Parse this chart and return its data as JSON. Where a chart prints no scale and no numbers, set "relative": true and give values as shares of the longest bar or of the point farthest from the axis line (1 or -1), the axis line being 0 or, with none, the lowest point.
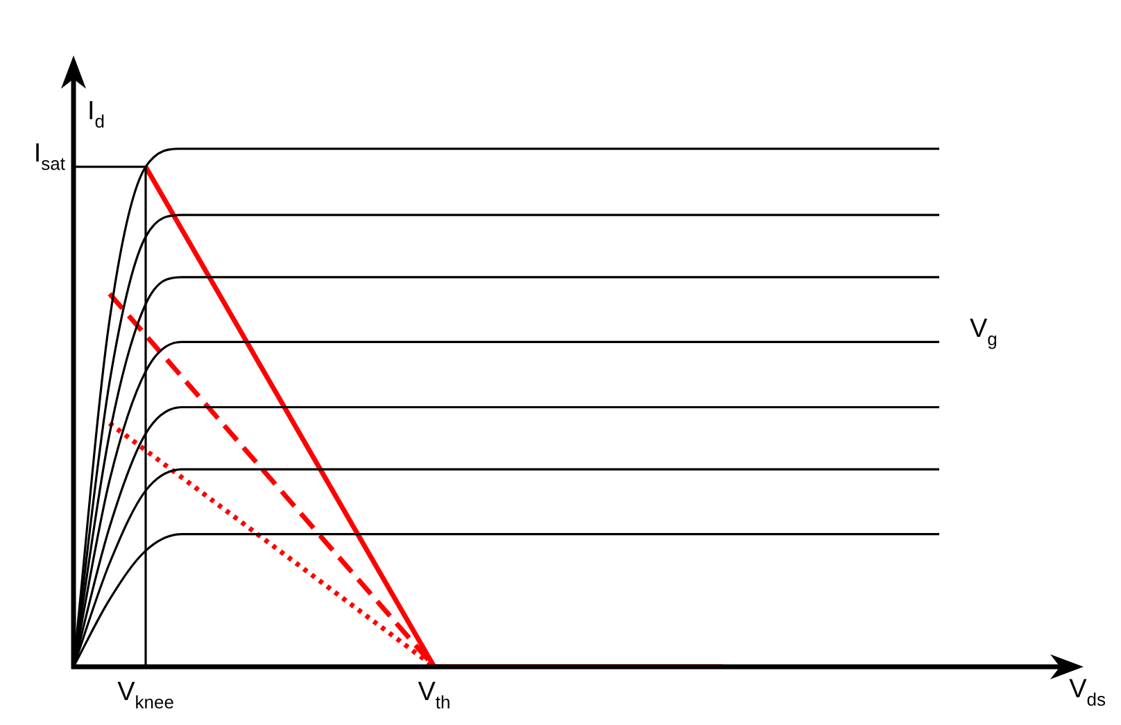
{
  "chart_data": {
    "type": "line",
    "relative": true,
    "xlabel": "V$_{ds}$",
    "ylabel": "I$_{d}$",
    "categories": [
      null,
      null,
      "V$_{knee}$",
      null,
      null,
      null,
      null,
      null,
      null,
      null,
      "V$_{th}$",
      null,
      null,
      null,
      null,
      null,
      null,
      null,
      null,
      null,
      null,
      null,
      null,
      null,
      null,
      null,
      null,
      null,
      null
    ],
    "series": [
      {
        "color": "#000000",
        "values": [
          0,
          0.67,
          0.965,
          1,
          1,
          1,
          1,
          1,
          1,
          1,
          1,
          1,
          1,
          1,
          1,
          1,
          1,
          1,
          1,
          1,
          1,
          1,
          1,
          1,
          1,
          null,
          null,
          null,
          null
        ]
      },
      {
        "color": "#000000",
        "values": [
          0,
          0.55,
          0.83,
          0.872,
          0.872,
          0.872,
          0.872,
          0.872,
          0.872,
          0.872,
          0.872,
          0.872,
          0.872,
          0.872,
          0.872,
          0.872,
          0.872,
          0.872,
          0.872,
          0.872,
          0.872,
          0.872,
          0.872,
          0.872,
          0.872,
          null,
          null,
          null,
          null
        ]
      },
      {
        "color": "#000000",
        "values": [
          0,
          0.45,
          0.7,
          0.752,
          0.752,
          0.752,
          0.752,
          0.752,
          0.752,
          0.752,
          0.752,
          0.752,
          0.752,
          0.752,
          0.752,
          0.752,
          0.752,
          0.752,
          0.752,
          0.752,
          0.752,
          0.752,
          0.752,
          0.752,
          0.752,
          null,
          null,
          null,
          null
        ]
      },
      {
        "color": "#000000",
        "values": [
          0,
          0.36,
          0.57,
          0.627,
          0.627,
          0.627,
          0.627,
          0.627,
          0.627,
          0.627,
          0.627,
          0.627,
          0.627,
          0.627,
          0.627,
          0.627,
          0.627,
          0.627,
          0.627,
          0.627,
          0.627,
          0.627,
          0.627,
          0.627,
          0.627,
          null,
          null,
          null,
          null
        ]
      },
      {
        "color": "#000000",
        "values": [
          0,
          0.27,
          0.45,
          0.501,
          0.501,
          0.501,
          0.501,
          0.501,
          0.501,
          0.501,
          0.501,
          0.501,
          0.501,
          0.501,
          0.501,
          0.501,
          0.501,
          0.501,
          0.501,
          0.501,
          0.501,
          0.501,
          0.501,
          0.501,
          0.501,
          null,
          null,
          null,
          null
        ]
      },
      {
        "color": "#000000",
        "values": [
          0,
          0.2,
          0.34,
          0.381,
          0.381,
          0.381,
          0.381,
          0.381,
          0.381,
          0.381,
          0.381,
          0.381,
          0.381,
          0.381,
          0.381,
          0.381,
          0.381,
          0.381,
          0.381,
          0.381,
          0.381,
          0.381,
          0.381,
          0.381,
          0.381,
          null,
          null,
          null,
          null
        ]
      },
      {
        "color": "#000000",
        "values": [
          0,
          0.13,
          0.224,
          0.256,
          0.256,
          0.256,
          0.256,
          0.256,
          0.256,
          0.256,
          0.256,
          0.256,
          0.256,
          0.256,
          0.256,
          0.256,
          0.256,
          0.256,
          0.256,
          0.256,
          0.256,
          0.256,
          0.256,
          0.256,
          0.256,
          null,
          null,
          null,
          null
        ]
      },
      {
        "color": "#ff0000",
        "line_style": "solid",
        "values": [
          null,
          null,
          0.965,
          null,
          null,
          null,
          null,
          null,
          null,
          null,
          0,
          null,
          null,
          null,
          null,
          null,
          null,
          null,
          0,
          null,
          null,
          null,
          null,
          null,
          null,
          null,
          null,
          null,
          null
        ]
      },
      {
        "color": "#ff0000",
        "line_style": "dashed",
        "values": [
          null,
          0.72,
          null,
          null,
          null,
          null,
          null,
          null,
          null,
          null,
          0,
          null,
          null,
          null,
          null,
          null,
          null,
          null,
          null,
          null,
          null,
          null,
          null,
          null,
          null,
          null,
          null,
          null,
          null
        ]
      },
      {
        "color": "#ff0000",
        "line_style": "dotted",
        "values": [
          null,
          0.47,
          null,
          null,
          null,
          null,
          null,
          null,
          null,
          null,
          0,
          null,
          null,
          null,
          null,
          null,
          null,
          null,
          null,
          null,
          null,
          null,
          null,
          null,
          null,
          null,
          null,
          null,
          null
        ]
      }
    ],
    "ref_lines": [
      {
        "axis": "y",
        "value": 0.965,
        "label": "I$_{sat}$",
        "color": "#000000"
      },
      {
        "axis": "x",
        "value": "V$_{knee}$",
        "color": "#000000"
      }
    ],
    "annotations": [
      "V$_{g}$"
    ],
    "marker": "none",
    "legend": false
  }
}
